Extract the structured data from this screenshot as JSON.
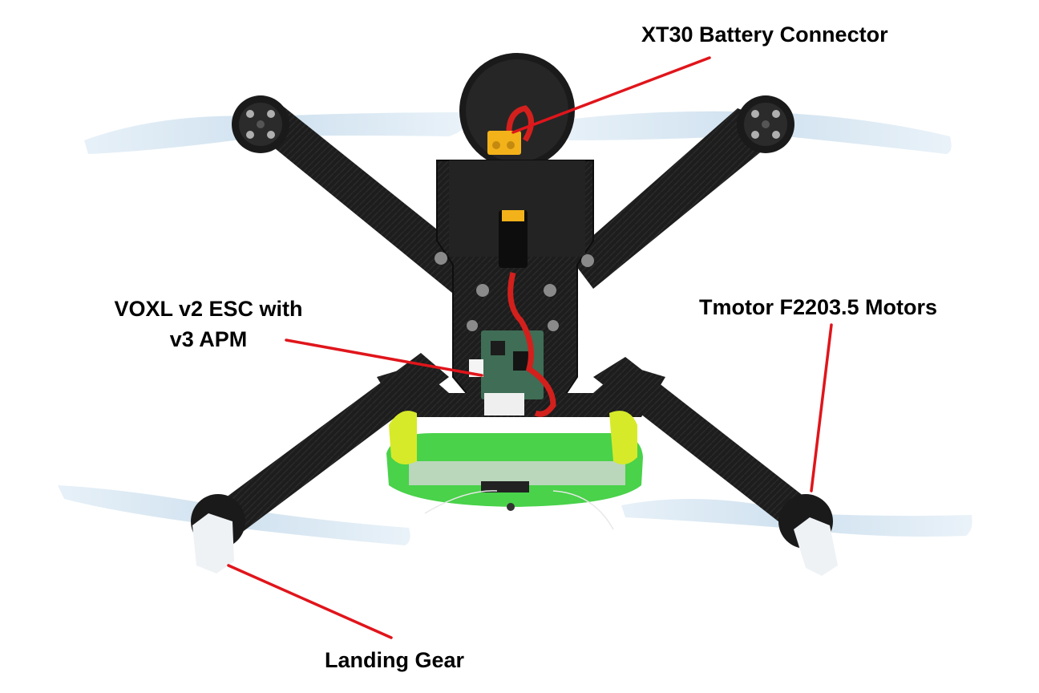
{
  "callouts": {
    "battery_connector": "XT30 Battery Connector",
    "esc_line1": "VOXL v2 ESC with",
    "esc_line2": "v3 APM",
    "motors": "Tmotor F2203.5 Motors",
    "landing_gear": "Landing Gear"
  },
  "colors": {
    "leader_line": "#e0151b",
    "label_text": "#000000",
    "frame": "#1b1b1b",
    "propeller": "#cfe2f0",
    "pcb_green": "#49d24a",
    "mount_yellow": "#d6ea2a",
    "xt30_yellow": "#f3b21a",
    "red_wire": "#d3201d"
  }
}
